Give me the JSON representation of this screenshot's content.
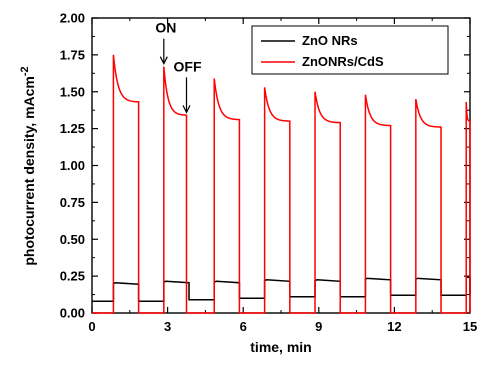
{
  "chart_data": {
    "type": "line",
    "title": "",
    "xlabel": "time, min",
    "ylabel": "photocurrent density, mAcm",
    "ylabel_sup": "-2",
    "xlim": [
      0,
      15
    ],
    "ylim": [
      0,
      2.0
    ],
    "xticks": [
      0,
      3,
      6,
      9,
      12,
      15
    ],
    "xtick_labels": [
      "0",
      "3",
      "6",
      "9",
      "12",
      "15"
    ],
    "yticks": [
      0,
      0.25,
      0.5,
      0.75,
      1.0,
      1.25,
      1.5,
      1.75,
      2.0
    ],
    "ytick_labels": [
      "0.00",
      "0.25",
      "0.50",
      "0.75",
      "1.00",
      "1.25",
      "1.50",
      "1.75",
      "2.00"
    ],
    "grid": false,
    "legend": "top-right",
    "series": [
      {
        "name": "ZnO NRs",
        "color": "#000000",
        "dark_level": [
          0.08,
          0.08,
          0.09,
          0.1,
          0.11,
          0.11,
          0.12,
          0.12
        ],
        "on_level": [
          0.2,
          0.21,
          0.21,
          0.22,
          0.22,
          0.23,
          0.23,
          0.24
        ],
        "on_intervals": [
          [
            0.85,
            1.85
          ],
          [
            2.85,
            3.85
          ],
          [
            4.85,
            5.85
          ],
          [
            6.85,
            7.85
          ],
          [
            8.85,
            9.85
          ],
          [
            10.85,
            11.85
          ],
          [
            12.85,
            13.85
          ],
          [
            14.85,
            15.0
          ]
        ]
      },
      {
        "name": "ZnONRs/CdS",
        "color": "#ff0000",
        "dark_level": [
          0.0
        ],
        "on_peak": [
          1.75,
          1.67,
          1.59,
          1.53,
          1.5,
          1.48,
          1.45,
          1.43
        ],
        "on_end": [
          1.43,
          1.34,
          1.31,
          1.3,
          1.29,
          1.27,
          1.26,
          1.3
        ],
        "on_intervals": [
          [
            0.85,
            1.85
          ],
          [
            2.85,
            3.75
          ],
          [
            4.85,
            5.85
          ],
          [
            6.85,
            7.85
          ],
          [
            8.85,
            9.85
          ],
          [
            10.85,
            11.85
          ],
          [
            12.85,
            13.85
          ],
          [
            14.85,
            15.0
          ]
        ]
      }
    ],
    "annotations": [
      {
        "text": "ON",
        "x": 2.85,
        "y": 1.67
      },
      {
        "text": "OFF",
        "x": 3.75,
        "y": 1.34
      }
    ]
  }
}
